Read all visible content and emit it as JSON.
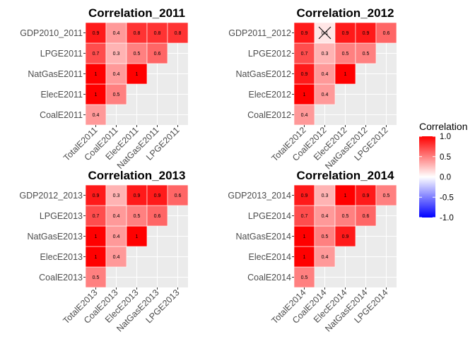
{
  "colors": {
    "panel_bg": "#EBEBEB",
    "grid": "#FFFFFF",
    "high": "#FF0000",
    "mid": "#FFFFFF",
    "low": "#0000FF",
    "text": "#000000",
    "axis_text": "#4D4D4D"
  },
  "legend": {
    "title": "Correlation",
    "ticks": [
      "1.0",
      "0.5",
      "0.0",
      "-0.5",
      "-1.0"
    ],
    "tick_values": [
      1.0,
      0.5,
      0.0,
      -0.5,
      -1.0
    ],
    "range": [
      -1,
      1
    ]
  },
  "chart_data": [
    {
      "type": "heatmap",
      "title": "Correlation_2011",
      "x": [
        "TotalE2011",
        "CoalE2011",
        "ElecE2011",
        "NatGasE2011",
        "LPGE2011"
      ],
      "y": [
        "CoalE2011",
        "ElecE2011",
        "NatGasE2011",
        "LPGE2011",
        "GDP2010_2011"
      ],
      "cells": [
        {
          "xi": 0,
          "yi": 0,
          "value": 0.4,
          "label": "0.4"
        },
        {
          "xi": 0,
          "yi": 1,
          "value": 1,
          "label": "1"
        },
        {
          "xi": 1,
          "yi": 1,
          "value": 0.5,
          "label": "0.5"
        },
        {
          "xi": 0,
          "yi": 2,
          "value": 1,
          "label": "1"
        },
        {
          "xi": 1,
          "yi": 2,
          "value": 0.4,
          "label": "0.4"
        },
        {
          "xi": 2,
          "yi": 2,
          "value": 1,
          "label": "1"
        },
        {
          "xi": 0,
          "yi": 3,
          "value": 0.7,
          "label": "0.7"
        },
        {
          "xi": 1,
          "yi": 3,
          "value": 0.3,
          "label": "0.3"
        },
        {
          "xi": 2,
          "yi": 3,
          "value": 0.5,
          "label": "0.5"
        },
        {
          "xi": 3,
          "yi": 3,
          "value": 0.6,
          "label": "0.6"
        },
        {
          "xi": 0,
          "yi": 4,
          "value": 0.9,
          "label": "0.9"
        },
        {
          "xi": 1,
          "yi": 4,
          "value": 0.4,
          "label": "0.4"
        },
        {
          "xi": 2,
          "yi": 4,
          "value": 0.8,
          "label": "0.8"
        },
        {
          "xi": 3,
          "yi": 4,
          "value": 0.8,
          "label": "0.8"
        },
        {
          "xi": 4,
          "yi": 4,
          "value": 0.8,
          "label": "0.8"
        }
      ]
    },
    {
      "type": "heatmap",
      "title": "Correlation_2012",
      "x": [
        "TotalE2012",
        "CoalE2012",
        "ElecE2012",
        "NatGasE2012",
        "LPGE2012"
      ],
      "y": [
        "CoalE2012",
        "ElecE2012",
        "NatGasE2012",
        "LPGE2012",
        "GDP2011_2012"
      ],
      "cells": [
        {
          "xi": 0,
          "yi": 0,
          "value": 0.4,
          "label": "0.4"
        },
        {
          "xi": 0,
          "yi": 1,
          "value": 1,
          "label": "1"
        },
        {
          "xi": 1,
          "yi": 1,
          "value": 0.4,
          "label": "0.4"
        },
        {
          "xi": 0,
          "yi": 2,
          "value": 0.9,
          "label": "0.9"
        },
        {
          "xi": 1,
          "yi": 2,
          "value": 0.4,
          "label": "0.4"
        },
        {
          "xi": 2,
          "yi": 2,
          "value": 1,
          "label": "1"
        },
        {
          "xi": 0,
          "yi": 3,
          "value": 0.7,
          "label": "0.7"
        },
        {
          "xi": 1,
          "yi": 3,
          "value": 0.3,
          "label": "0.3"
        },
        {
          "xi": 2,
          "yi": 3,
          "value": 0.5,
          "label": "0.5"
        },
        {
          "xi": 3,
          "yi": 3,
          "value": 0.5,
          "label": "0.5"
        },
        {
          "xi": 0,
          "yi": 4,
          "value": 0.9,
          "label": "0.9"
        },
        {
          "xi": 1,
          "yi": 4,
          "value": 0.1,
          "label": "0.1",
          "crossed": true
        },
        {
          "xi": 2,
          "yi": 4,
          "value": 0.9,
          "label": "0.9"
        },
        {
          "xi": 3,
          "yi": 4,
          "value": 0.9,
          "label": "0.9"
        },
        {
          "xi": 4,
          "yi": 4,
          "value": 0.6,
          "label": "0.6"
        }
      ]
    },
    {
      "type": "heatmap",
      "title": "Correlation_2013",
      "x": [
        "TotalE2013",
        "CoalE2013",
        "ElecE2013",
        "NatGasE2013",
        "LPGE2013"
      ],
      "y": [
        "CoalE2013",
        "ElecE2013",
        "NatGasE2013",
        "LPGE2013",
        "GDP2012_2013"
      ],
      "cells": [
        {
          "xi": 0,
          "yi": 0,
          "value": 0.5,
          "label": "0.5"
        },
        {
          "xi": 0,
          "yi": 1,
          "value": 1,
          "label": "1"
        },
        {
          "xi": 1,
          "yi": 1,
          "value": 0.4,
          "label": "0.4"
        },
        {
          "xi": 0,
          "yi": 2,
          "value": 1,
          "label": "1"
        },
        {
          "xi": 1,
          "yi": 2,
          "value": 0.4,
          "label": "0.4"
        },
        {
          "xi": 2,
          "yi": 2,
          "value": 1,
          "label": "1"
        },
        {
          "xi": 0,
          "yi": 3,
          "value": 0.7,
          "label": "0.7"
        },
        {
          "xi": 1,
          "yi": 3,
          "value": 0.4,
          "label": "0.4"
        },
        {
          "xi": 2,
          "yi": 3,
          "value": 0.5,
          "label": "0.5"
        },
        {
          "xi": 3,
          "yi": 3,
          "value": 0.6,
          "label": "0.6"
        },
        {
          "xi": 0,
          "yi": 4,
          "value": 0.9,
          "label": "0.9"
        },
        {
          "xi": 1,
          "yi": 4,
          "value": 0.3,
          "label": "0.3"
        },
        {
          "xi": 2,
          "yi": 4,
          "value": 0.9,
          "label": "0.9"
        },
        {
          "xi": 3,
          "yi": 4,
          "value": 0.9,
          "label": "0.9"
        },
        {
          "xi": 4,
          "yi": 4,
          "value": 0.6,
          "label": "0.6"
        }
      ]
    },
    {
      "type": "heatmap",
      "title": "Correlation_2014",
      "x": [
        "TotalE2014",
        "CoalE2014",
        "ElecE2014",
        "NatGasE2014",
        "LPGE2014"
      ],
      "y": [
        "CoalE2014",
        "ElecE2014",
        "NatGasE2014",
        "LPGE2014",
        "GDP2013_2014"
      ],
      "cells": [
        {
          "xi": 0,
          "yi": 0,
          "value": 0.5,
          "label": "0.5"
        },
        {
          "xi": 0,
          "yi": 1,
          "value": 1,
          "label": "1"
        },
        {
          "xi": 1,
          "yi": 1,
          "value": 0.4,
          "label": "0.4"
        },
        {
          "xi": 0,
          "yi": 2,
          "value": 1,
          "label": "1"
        },
        {
          "xi": 1,
          "yi": 2,
          "value": 0.5,
          "label": "0.5"
        },
        {
          "xi": 2,
          "yi": 2,
          "value": 0.9,
          "label": "0.9"
        },
        {
          "xi": 0,
          "yi": 3,
          "value": 0.7,
          "label": "0.7"
        },
        {
          "xi": 1,
          "yi": 3,
          "value": 0.4,
          "label": "0.4"
        },
        {
          "xi": 2,
          "yi": 3,
          "value": 0.5,
          "label": "0.5"
        },
        {
          "xi": 3,
          "yi": 3,
          "value": 0.6,
          "label": "0.6"
        },
        {
          "xi": 0,
          "yi": 4,
          "value": 0.9,
          "label": "0.9"
        },
        {
          "xi": 1,
          "yi": 4,
          "value": 0.3,
          "label": "0.3"
        },
        {
          "xi": 2,
          "yi": 4,
          "value": 1,
          "label": "1"
        },
        {
          "xi": 3,
          "yi": 4,
          "value": 0.9,
          "label": "0.9"
        },
        {
          "xi": 4,
          "yi": 4,
          "value": 0.5,
          "label": "0.5"
        }
      ]
    }
  ]
}
